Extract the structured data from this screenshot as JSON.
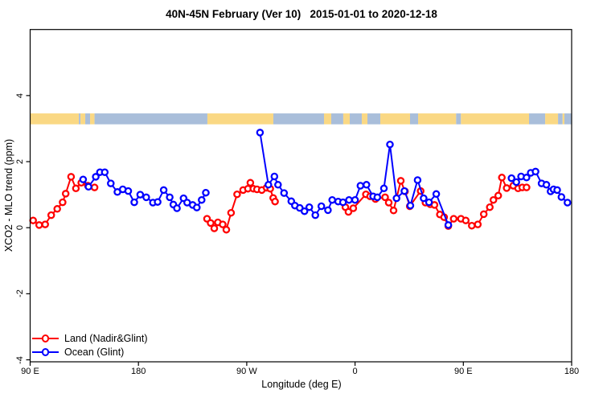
{
  "title": "40N-45N February (Ver 10)   2015-01-01 to 2020-12-18",
  "colors": {
    "land_series": "#ff0000",
    "ocean_series": "#0000ff",
    "map_land": "#fad884",
    "map_ocean": "#a9beda",
    "axis": "#000000"
  },
  "legend": {
    "items": [
      {
        "label": "Land (Nadir&Glint)",
        "color": "#ff0000"
      },
      {
        "label": "Ocean (Glint)",
        "color": "#0000ff"
      }
    ]
  },
  "chart_data": {
    "type": "line",
    "title": "40N-45N February (Ver 10)   2015-01-01 to 2020-12-18",
    "xlabel": "Longitude (deg E)",
    "ylabel": "XCO2 - MLO trend (ppm)",
    "xlim": [
      90,
      540
    ],
    "ylim": [
      -4.06,
      6.0
    ],
    "x_ticks": [
      {
        "value": 90,
        "label": "90 E"
      },
      {
        "value": 180,
        "label": "180"
      },
      {
        "value": 270,
        "label": "90 W"
      },
      {
        "value": 360,
        "label": "0"
      },
      {
        "value": 450,
        "label": "90 E"
      },
      {
        "value": 540,
        "label": "180"
      }
    ],
    "y_ticks": [
      {
        "value": -4,
        "label": "-4"
      },
      {
        "value": -2,
        "label": "-2"
      },
      {
        "value": 0,
        "label": "0"
      },
      {
        "value": 2,
        "label": "2"
      },
      {
        "value": 4,
        "label": "4"
      }
    ],
    "grid": false,
    "legend_position": "bottom-left",
    "marker": "open-circle",
    "series": [
      {
        "name": "Land (Nadir&Glint)",
        "color": "#ff0000",
        "segments": [
          [
            [
              92.5,
              0.22
            ],
            [
              97.5,
              0.08
            ],
            [
              102.5,
              0.1
            ],
            [
              107.5,
              0.38
            ],
            [
              112.5,
              0.57
            ],
            [
              117,
              0.77
            ],
            [
              119.5,
              1.03
            ],
            [
              124,
              1.54
            ],
            [
              128,
              1.19
            ],
            [
              132.5,
              1.36
            ],
            [
              138,
              1.27
            ],
            [
              143.5,
              1.22
            ]
          ],
          [
            [
              237,
              0.27
            ],
            [
              240,
              0.14
            ],
            [
              243,
              -0.02
            ],
            [
              246,
              0.16
            ],
            [
              250,
              0.1
            ],
            [
              253,
              -0.06
            ],
            [
              257,
              0.45
            ],
            [
              262,
              1.01
            ],
            [
              267,
              1.14
            ],
            [
              271,
              1.18
            ],
            [
              273,
              1.36
            ],
            [
              275.5,
              1.18
            ],
            [
              278.5,
              1.16
            ],
            [
              282.5,
              1.14
            ],
            [
              286.5,
              1.21
            ],
            [
              289.5,
              1.18
            ],
            [
              292,
              0.9
            ],
            [
              293.5,
              0.79
            ]
          ],
          [
            [
              352,
              0.62
            ],
            [
              354.5,
              0.48
            ],
            [
              358.5,
              0.59
            ],
            [
              369,
              1.01
            ],
            [
              372.5,
              0.95
            ],
            [
              377,
              0.87
            ],
            [
              385,
              0.92
            ],
            [
              388,
              0.76
            ],
            [
              392,
              0.52
            ],
            [
              398,
              1.42
            ],
            [
              401.5,
              1.1
            ],
            [
              405.5,
              0.65
            ],
            [
              414.5,
              1.11
            ],
            [
              418.5,
              0.76
            ],
            [
              422.5,
              0.71
            ],
            [
              426,
              0.69
            ],
            [
              430.5,
              0.4
            ],
            [
              434,
              0.32
            ],
            [
              437.5,
              0.05
            ],
            [
              442,
              0.27
            ],
            [
              448,
              0.27
            ],
            [
              452,
              0.22
            ],
            [
              457,
              0.06
            ],
            [
              462,
              0.1
            ],
            [
              467,
              0.41
            ],
            [
              472,
              0.62
            ],
            [
              475,
              0.84
            ],
            [
              479,
              0.97
            ],
            [
              482,
              1.52
            ],
            [
              486,
              1.2
            ],
            [
              491.5,
              1.27
            ],
            [
              495.5,
              1.19
            ],
            [
              499,
              1.22
            ],
            [
              502.5,
              1.22
            ]
          ]
        ]
      },
      {
        "name": "Ocean (Glint)",
        "color": "#0000ff",
        "segments": [
          [
            [
              134,
              1.46
            ],
            [
              138.5,
              1.24
            ],
            [
              144.5,
              1.54
            ],
            [
              148,
              1.68
            ],
            [
              152,
              1.68
            ],
            [
              157,
              1.34
            ],
            [
              162.5,
              1.08
            ],
            [
              167,
              1.16
            ],
            [
              171.5,
              1.11
            ],
            [
              176.5,
              0.77
            ],
            [
              181.5,
              1.0
            ],
            [
              186.5,
              0.92
            ],
            [
              192,
              0.76
            ],
            [
              196,
              0.78
            ],
            [
              201,
              1.14
            ],
            [
              206,
              0.92
            ],
            [
              209,
              0.7
            ],
            [
              212,
              0.59
            ],
            [
              217.5,
              0.89
            ],
            [
              220.5,
              0.76
            ],
            [
              225,
              0.69
            ],
            [
              228.5,
              0.61
            ],
            [
              232.5,
              0.84
            ],
            [
              236,
              1.06
            ]
          ],
          [
            [
              281,
              2.88
            ],
            [
              288,
              1.3
            ],
            [
              293,
              1.55
            ],
            [
              296,
              1.3
            ],
            [
              301,
              1.05
            ],
            [
              307,
              0.8
            ],
            [
              310,
              0.67
            ],
            [
              314,
              0.6
            ],
            [
              318,
              0.5
            ],
            [
              322,
              0.62
            ],
            [
              327,
              0.38
            ],
            [
              332,
              0.65
            ],
            [
              337.5,
              0.53
            ],
            [
              341,
              0.84
            ],
            [
              346,
              0.79
            ],
            [
              350,
              0.77
            ],
            [
              355,
              0.84
            ],
            [
              360,
              0.84
            ],
            [
              364.5,
              1.27
            ],
            [
              369.5,
              1.3
            ],
            [
              375,
              0.95
            ],
            [
              378.5,
              0.92
            ],
            [
              384,
              1.19
            ],
            [
              389,
              2.52
            ],
            [
              394.5,
              0.89
            ],
            [
              401,
              1.11
            ],
            [
              406,
              0.67
            ],
            [
              412,
              1.44
            ],
            [
              417,
              0.89
            ],
            [
              421.5,
              0.77
            ],
            [
              427.5,
              1.02
            ],
            [
              437.5,
              0.08
            ]
          ],
          [
            [
              490,
              1.5
            ],
            [
              494,
              1.38
            ],
            [
              498,
              1.55
            ],
            [
              502.5,
              1.52
            ],
            [
              506,
              1.66
            ],
            [
              510,
              1.7
            ],
            [
              515,
              1.34
            ],
            [
              519,
              1.3
            ],
            [
              522.5,
              1.1
            ],
            [
              525,
              1.16
            ],
            [
              528,
              1.14
            ],
            [
              531.5,
              0.93
            ],
            [
              536.5,
              0.76
            ]
          ]
        ]
      }
    ],
    "map_strip": {
      "description": "land/ocean map band",
      "y_top": 3.46,
      "y_bottom": 3.13,
      "segments": [
        {
          "from": 90,
          "to": 130.5,
          "type": "land"
        },
        {
          "from": 130.5,
          "to": 131.8,
          "type": "ocean"
        },
        {
          "from": 131.8,
          "to": 135.8,
          "type": "land"
        },
        {
          "from": 135.8,
          "to": 139.8,
          "type": "ocean"
        },
        {
          "from": 139.8,
          "to": 143.5,
          "type": "land"
        },
        {
          "from": 143.5,
          "to": 237.3,
          "type": "ocean"
        },
        {
          "from": 237.3,
          "to": 292.1,
          "type": "land"
        },
        {
          "from": 292.1,
          "to": 334.2,
          "type": "ocean"
        },
        {
          "from": 334.2,
          "to": 340.2,
          "type": "land"
        },
        {
          "from": 340.2,
          "to": 350.2,
          "type": "ocean"
        },
        {
          "from": 350.2,
          "to": 355.6,
          "type": "land"
        },
        {
          "from": 355.6,
          "to": 365.6,
          "type": "ocean"
        },
        {
          "from": 365.6,
          "to": 370.3,
          "type": "land"
        },
        {
          "from": 370.3,
          "to": 381,
          "type": "ocean"
        },
        {
          "from": 381,
          "to": 405.7,
          "type": "land"
        },
        {
          "from": 405.7,
          "to": 412.4,
          "type": "ocean"
        },
        {
          "from": 412.4,
          "to": 444,
          "type": "land"
        },
        {
          "from": 444,
          "to": 448,
          "type": "ocean"
        },
        {
          "from": 448,
          "to": 504.6,
          "type": "land"
        },
        {
          "from": 504.6,
          "to": 518,
          "type": "ocean"
        },
        {
          "from": 518,
          "to": 528.7,
          "type": "land"
        },
        {
          "from": 528.7,
          "to": 532.5,
          "type": "ocean"
        },
        {
          "from": 532.5,
          "to": 534,
          "type": "land"
        },
        {
          "from": 534,
          "to": 540,
          "type": "ocean"
        }
      ]
    }
  }
}
